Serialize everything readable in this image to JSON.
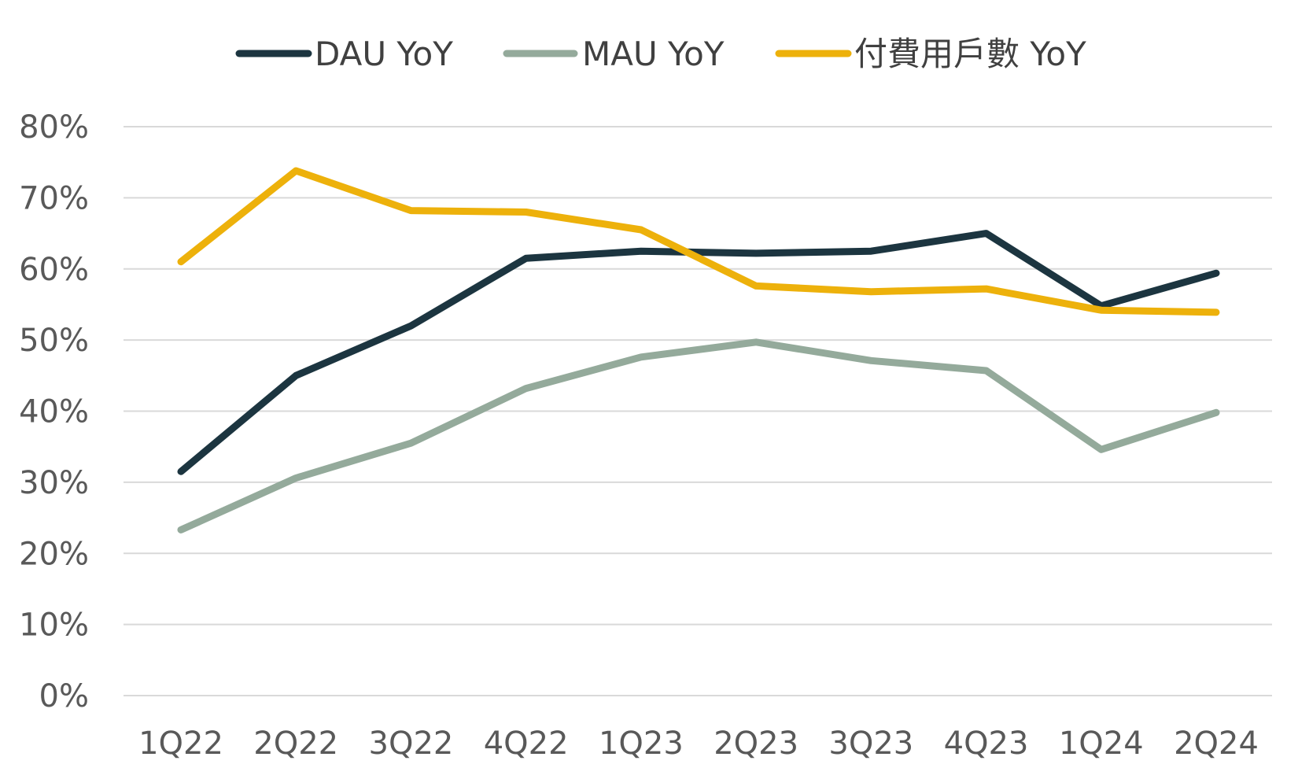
{
  "chart_data": {
    "type": "line",
    "categories": [
      "1Q22",
      "2Q22",
      "3Q22",
      "4Q22",
      "1Q23",
      "2Q23",
      "3Q23",
      "4Q23",
      "1Q24",
      "2Q24"
    ],
    "series": [
      {
        "name": "DAU YoY",
        "color": "#1c3540",
        "values": [
          31.5,
          45.0,
          52.0,
          61.5,
          62.5,
          62.2,
          62.5,
          65.0,
          54.8,
          59.4
        ]
      },
      {
        "name": "MAU YoY",
        "color": "#94aa9b",
        "values": [
          23.3,
          30.6,
          35.5,
          43.2,
          47.6,
          49.7,
          47.1,
          45.7,
          34.6,
          39.8
        ]
      },
      {
        "name": "付費用戶數 YoY",
        "color": "#edb10b",
        "values": [
          61.0,
          73.8,
          68.2,
          68.0,
          65.5,
          57.6,
          56.8,
          57.2,
          54.2,
          53.9
        ]
      }
    ],
    "y_ticks": [
      "0%",
      "10%",
      "20%",
      "30%",
      "40%",
      "50%",
      "60%",
      "70%",
      "80%"
    ],
    "ylim": [
      0,
      80
    ],
    "y_step": 10,
    "grid": true,
    "legend_position": "top-center"
  }
}
